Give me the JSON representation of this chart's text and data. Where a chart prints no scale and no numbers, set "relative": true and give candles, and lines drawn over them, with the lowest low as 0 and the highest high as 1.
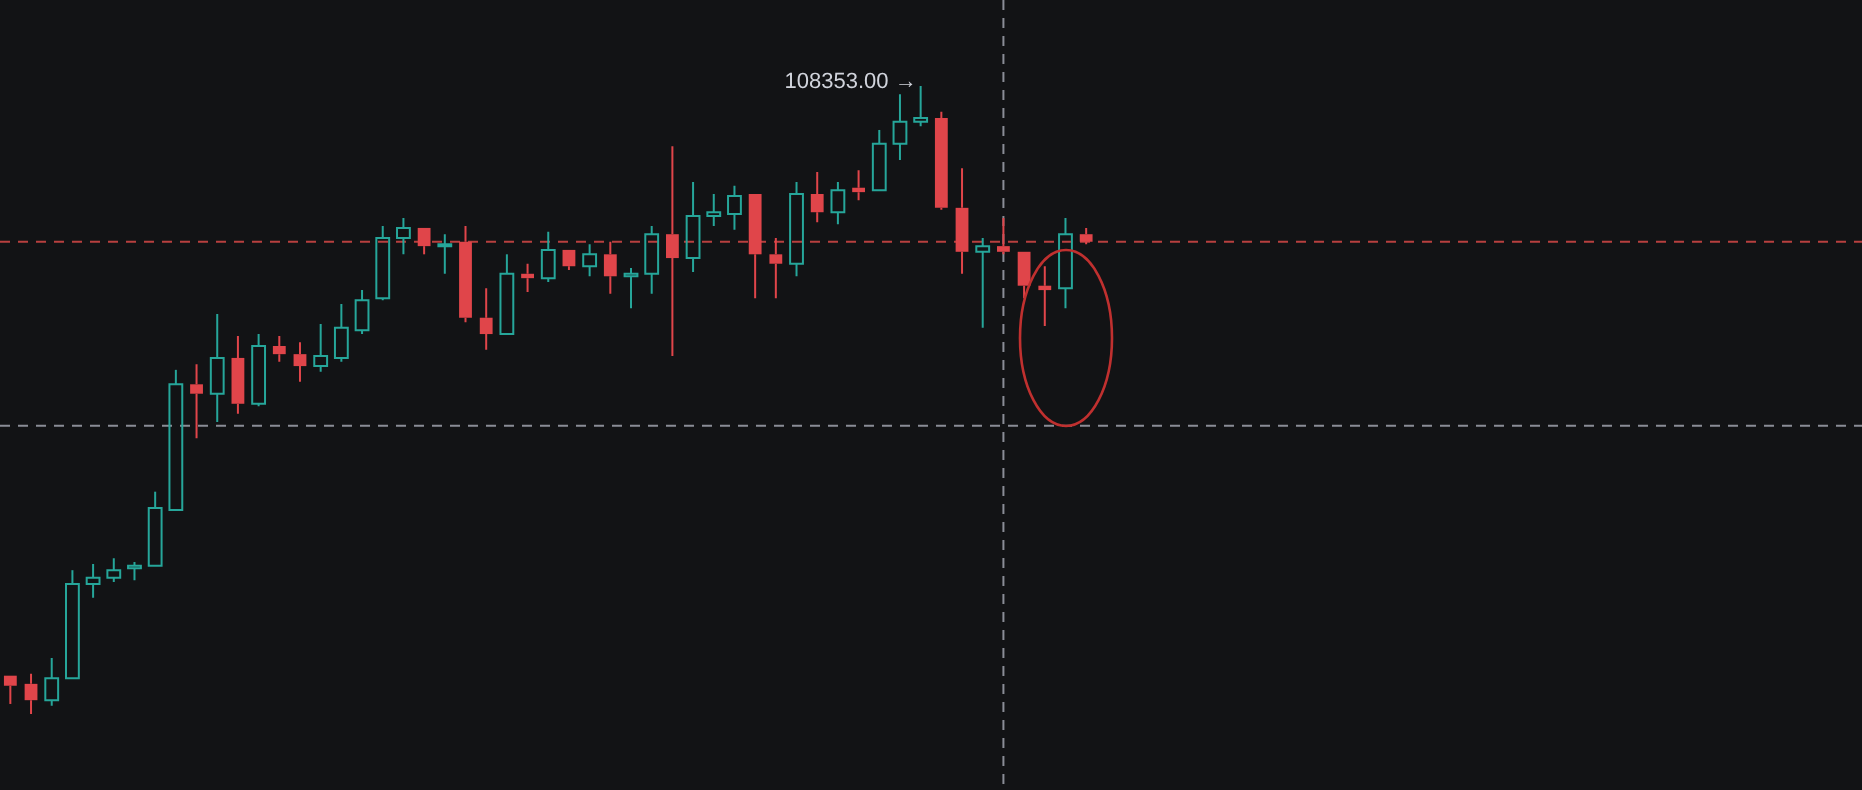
{
  "chart_data": {
    "type": "candlestick",
    "relative": true,
    "legend": false,
    "categories": [
      null,
      null,
      null,
      null,
      null,
      null,
      null,
      null,
      null,
      null,
      null,
      null,
      null,
      null,
      null,
      null,
      null,
      null,
      null,
      null,
      null,
      null,
      null,
      null,
      null,
      null,
      null,
      null,
      null,
      null,
      null,
      null,
      null,
      null,
      null,
      null,
      null,
      null,
      null,
      null,
      null,
      null,
      null,
      null,
      null,
      null,
      null,
      null,
      null,
      null,
      null,
      null,
      null,
      null,
      null,
      null,
      null,
      null,
      null,
      null,
      null,
      null,
      null,
      null,
      null,
      null,
      null,
      null,
      null,
      null,
      null,
      null,
      null,
      null,
      null,
      null,
      null,
      null,
      null,
      null,
      null,
      null,
      null,
      null,
      null,
      null,
      null,
      null,
      null,
      null
    ],
    "ohlc": [
      [
        0.061,
        0.061,
        0.016,
        0.045
      ],
      [
        0.048,
        0.064,
        0,
        0.022
      ],
      [
        0.022,
        0.089,
        0.013,
        0.057
      ],
      [
        0.057,
        0.229,
        0.057,
        0.207
      ],
      [
        0.207,
        0.239,
        0.185,
        0.217
      ],
      [
        0.217,
        0.248,
        0.21,
        0.229
      ],
      [
        0.232,
        0.242,
        0.213,
        0.236
      ],
      [
        0.236,
        0.354,
        0.236,
        0.328
      ],
      [
        0.325,
        0.548,
        0.325,
        0.525
      ],
      [
        0.525,
        0.557,
        0.439,
        0.51
      ],
      [
        0.51,
        0.637,
        0.465,
        0.567
      ],
      [
        0.567,
        0.602,
        0.478,
        0.494
      ],
      [
        0.494,
        0.605,
        0.49,
        0.586
      ],
      [
        0.586,
        0.602,
        0.561,
        0.573
      ],
      [
        0.573,
        0.592,
        0.529,
        0.554
      ],
      [
        0.554,
        0.621,
        0.545,
        0.57
      ],
      [
        0.567,
        0.653,
        0.561,
        0.615
      ],
      [
        0.611,
        0.675,
        0.605,
        0.659
      ],
      [
        0.662,
        0.777,
        0.659,
        0.758
      ],
      [
        0.758,
        0.79,
        0.732,
        0.774
      ],
      [
        0.774,
        0.774,
        0.732,
        0.745
      ],
      [
        0.745,
        0.764,
        0.701,
        0.748
      ],
      [
        0.752,
        0.777,
        0.624,
        0.631
      ],
      [
        0.631,
        0.678,
        0.58,
        0.605
      ],
      [
        0.605,
        0.732,
        0.605,
        0.701
      ],
      [
        0.701,
        0.717,
        0.672,
        0.694
      ],
      [
        0.694,
        0.768,
        0.688,
        0.739
      ],
      [
        0.739,
        0.739,
        0.707,
        0.713
      ],
      [
        0.713,
        0.748,
        0.697,
        0.732
      ],
      [
        0.732,
        0.752,
        0.669,
        0.697
      ],
      [
        0.697,
        0.71,
        0.646,
        0.701
      ],
      [
        0.701,
        0.777,
        0.669,
        0.764
      ],
      [
        0.764,
        0.904,
        0.57,
        0.726
      ],
      [
        0.726,
        0.847,
        0.704,
        0.793
      ],
      [
        0.793,
        0.828,
        0.777,
        0.799
      ],
      [
        0.796,
        0.841,
        0.771,
        0.825
      ],
      [
        0.828,
        0.828,
        0.662,
        0.732
      ],
      [
        0.732,
        0.758,
        0.662,
        0.717
      ],
      [
        0.717,
        0.847,
        0.697,
        0.828
      ],
      [
        0.828,
        0.863,
        0.783,
        0.799
      ],
      [
        0.799,
        0.847,
        0.78,
        0.834
      ],
      [
        0.838,
        0.866,
        0.818,
        0.831
      ],
      [
        0.834,
        0.93,
        0.834,
        0.908
      ],
      [
        0.908,
        0.987,
        0.882,
        0.943
      ],
      [
        0.943,
        1,
        0.936,
        0.949
      ],
      [
        0.949,
        0.959,
        0.803,
        0.806
      ],
      [
        0.806,
        0.869,
        0.701,
        0.736
      ],
      [
        0.736,
        0.758,
        0.615,
        0.745
      ],
      [
        0.745,
        0.79,
        0.732,
        0.736
      ],
      [
        0.736,
        0.736,
        0.662,
        0.682
      ],
      [
        0.682,
        0.713,
        0.618,
        0.675
      ],
      [
        0.678,
        0.79,
        0.646,
        0.764
      ],
      [
        0.764,
        0.774,
        0.748,
        0.752
      ],
      null,
      null,
      null,
      null,
      null,
      null,
      null,
      null,
      null,
      null,
      null,
      null,
      null,
      null,
      null,
      null,
      null,
      null,
      null,
      null,
      null,
      null,
      null,
      null,
      null,
      null,
      null,
      null,
      null,
      null,
      null,
      null,
      null,
      null,
      null,
      null,
      null
    ],
    "colors": [
      "#e0454a",
      "#e0454a",
      "#26a69a",
      "#26a69a",
      "#26a69a",
      "#26a69a",
      "#26a69a",
      "#26a69a",
      "#26a69a",
      "#e0454a",
      "#26a69a",
      "#e0454a",
      "#26a69a",
      "#e0454a",
      "#e0454a",
      "#26a69a",
      "#26a69a",
      "#26a69a",
      "#26a69a",
      "#26a69a",
      "#e0454a",
      "#26a69a",
      "#e0454a",
      "#e0454a",
      "#26a69a",
      "#e0454a",
      "#26a69a",
      "#e0454a",
      "#26a69a",
      "#e0454a",
      "#26a69a",
      "#26a69a",
      "#e0454a",
      "#26a69a",
      "#26a69a",
      "#26a69a",
      "#e0454a",
      "#e0454a",
      "#26a69a",
      "#e0454a",
      "#26a69a",
      "#e0454a",
      "#26a69a",
      "#26a69a",
      "#26a69a",
      "#e0454a",
      "#e0454a",
      "#26a69a",
      "#e0454a",
      "#e0454a",
      "#e0454a",
      "#26a69a",
      "#e0454a",
      null,
      null,
      null,
      null,
      null,
      null,
      null,
      null,
      null,
      null,
      null,
      null,
      null,
      null,
      null,
      null,
      null,
      null,
      null,
      null,
      null,
      null,
      null,
      null,
      null,
      null,
      null,
      null,
      null,
      null,
      null,
      null,
      null,
      null,
      null,
      null,
      null
    ],
    "annotations": [
      "108353.00 →"
    ],
    "ref_lines": [
      {
        "axis": "y",
        "value": 0.752,
        "color": "#b8403f",
        "line_style": "dashed"
      },
      {
        "axis": "y",
        "value": 0.459,
        "color": "#8a8d96",
        "line_style": "dashed"
      }
    ]
  }
}
